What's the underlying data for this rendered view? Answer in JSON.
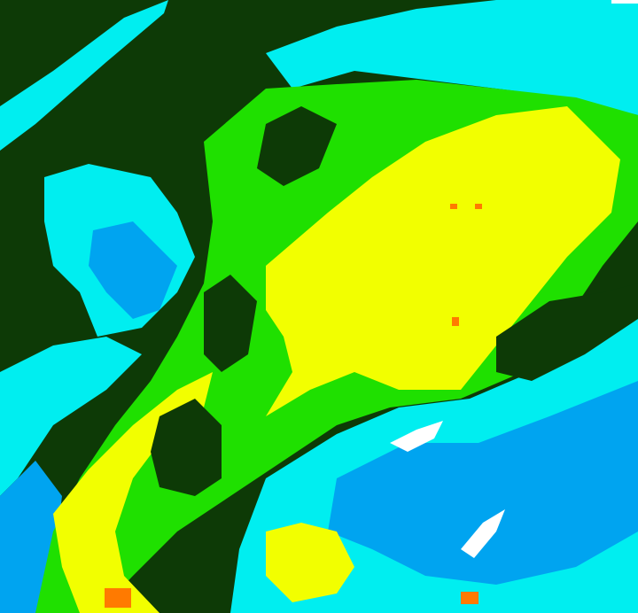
{
  "palette": {
    "background": "#0d3a06",
    "cyan": "#00eef0",
    "blue": "#00a4f0",
    "green": "#1fe000",
    "yellow": "#f2ff00",
    "orange": "#ff7a00",
    "white": "#ffffff"
  }
}
